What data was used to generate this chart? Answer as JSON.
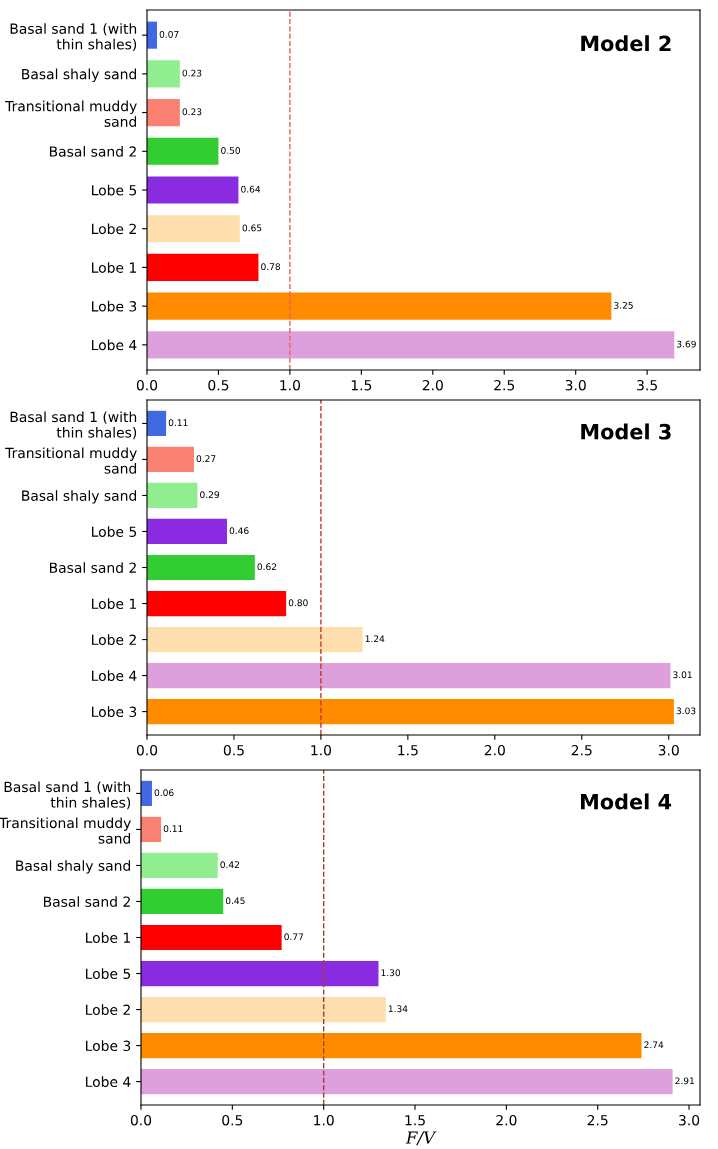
{
  "chart_data": [
    {
      "type": "bar",
      "orientation": "horizontal",
      "title": "Model 2",
      "value_labels": [
        "0.07",
        "0.23",
        "0.23",
        "0.50",
        "0.64",
        "0.65",
        "0.78",
        "3.25",
        "3.69"
      ],
      "categories": [
        "Basal sand 1 (with\nthin shales)",
        "Basal shaly sand",
        "Transitional muddy\nsand",
        "Basal sand 2",
        "Lobe 5",
        "Lobe 2",
        "Lobe 1",
        "Lobe 3",
        "Lobe 4"
      ],
      "values": [
        0.07,
        0.23,
        0.23,
        0.5,
        0.64,
        0.65,
        0.78,
        3.25,
        3.69
      ],
      "colors": [
        "#4169e1",
        "#90ee90",
        "#fa8072",
        "#32cd32",
        "#8a2be2",
        "#ffdead",
        "#ff0000",
        "#ff8c00",
        "#dda0dd"
      ],
      "xlim": [
        0,
        3.87
      ],
      "xticks": [
        {
          "value": 0,
          "label": "0.0"
        },
        0.5,
        {
          "value": 1,
          "label": "1.0"
        },
        1.5,
        {
          "value": 2,
          "label": "2.0"
        },
        2.5,
        {
          "value": 3,
          "label": "3.0"
        },
        3.5
      ],
      "ref_lines": [
        {
          "axis": "x",
          "value": 1.0,
          "color": "#e8605a",
          "line_style": "dashed"
        }
      ]
    },
    {
      "type": "bar",
      "orientation": "horizontal",
      "title": "Model 3",
      "value_labels": [
        "0.11",
        "0.27",
        "0.29",
        "0.46",
        "0.62",
        "0.80",
        "1.24",
        "3.01",
        "3.03"
      ],
      "categories": [
        "Basal sand 1 (with\nthin shales)",
        "Transitional muddy\nsand",
        "Basal shaly sand",
        "Lobe 5",
        "Basal sand 2",
        "Lobe 1",
        "Lobe 2",
        "Lobe 4",
        "Lobe 3"
      ],
      "values": [
        0.11,
        0.27,
        0.29,
        0.46,
        0.62,
        0.8,
        1.24,
        3.01,
        3.03
      ],
      "colors": [
        "#4169e1",
        "#fa8072",
        "#90ee90",
        "#8a2be2",
        "#32cd32",
        "#ff0000",
        "#ffdead",
        "#dda0dd",
        "#ff8c00"
      ],
      "xlim": [
        0,
        3.18
      ],
      "xticks": [
        {
          "value": 0,
          "label": "0.0"
        },
        0.5,
        {
          "value": 1,
          "label": "1.0"
        },
        1.5,
        {
          "value": 2,
          "label": "2.0"
        },
        2.5,
        {
          "value": 3,
          "label": "3.0"
        }
      ],
      "ref_lines": [
        {
          "axis": "x",
          "value": 1.0,
          "color": "#c0392b",
          "line_style": "dashed"
        }
      ]
    },
    {
      "type": "bar",
      "orientation": "horizontal",
      "title": "Model 4",
      "value_labels": [
        "0.06",
        "0.11",
        "0.42",
        "0.45",
        "0.77",
        "1.30",
        "1.34",
        "2.74",
        "2.91"
      ],
      "xlabel": "F/V",
      "categories": [
        "Basal sand 1 (with\nthin shales)",
        "Transitional muddy\nsand",
        "Basal shaly sand",
        "Basal sand 2",
        "Lobe 1",
        "Lobe 5",
        "Lobe 2",
        "Lobe 3",
        "Lobe 4"
      ],
      "values": [
        0.06,
        0.11,
        0.42,
        0.45,
        0.77,
        1.3,
        1.34,
        2.74,
        2.91
      ],
      "colors": [
        "#4169e1",
        "#fa8072",
        "#90ee90",
        "#32cd32",
        "#ff0000",
        "#8a2be2",
        "#ffdead",
        "#ff8c00",
        "#dda0dd"
      ],
      "xlim": [
        0,
        3.06
      ],
      "xticks": [
        {
          "value": 0,
          "label": "0.0"
        },
        0.5,
        {
          "value": 1,
          "label": "1.0"
        },
        1.5,
        {
          "value": 2,
          "label": "2.0"
        },
        2.5,
        {
          "value": 3,
          "label": "3.0"
        }
      ],
      "ref_lines": [
        {
          "axis": "x",
          "value": 1.0,
          "color": "#a0402a",
          "line_style": "dashed"
        }
      ]
    }
  ]
}
